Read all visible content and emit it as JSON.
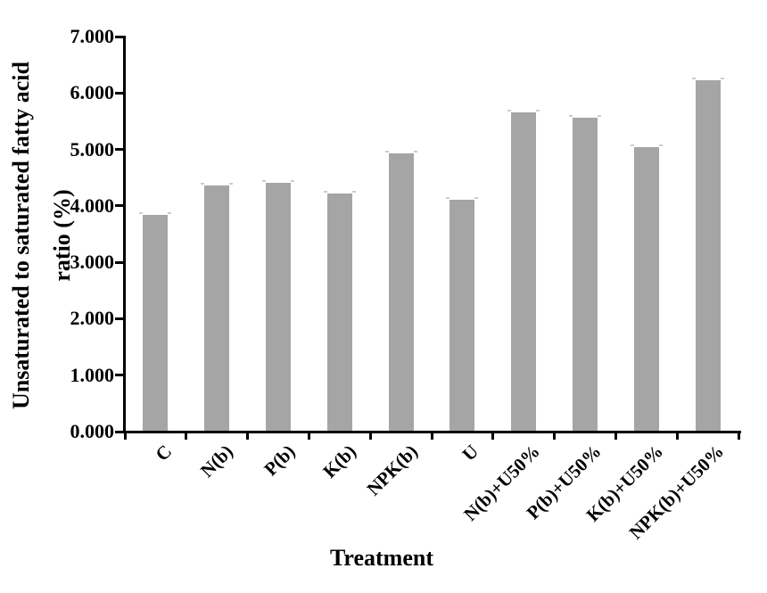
{
  "chart_data": {
    "type": "bar",
    "title": "",
    "categories": [
      "C",
      "N(b)",
      "P(b)",
      "K(b)",
      "NPK(b)",
      "U",
      "N(b)+U50%",
      "P(b)+U50%",
      "K(b)+U50%",
      "NPK(b)+U50%"
    ],
    "values": [
      3.83,
      4.35,
      4.39,
      4.2,
      4.91,
      4.09,
      5.64,
      5.54,
      5.03,
      6.21
    ],
    "xlabel": "Treatment",
    "ylabel": "Unsaturated to saturated fatty acid ratio (%)",
    "ylabel_line1": "Unsaturated to saturated fatty acid",
    "ylabel_line2": "ratio (%)",
    "ylim": [
      0,
      7
    ],
    "ytick_interval": 1,
    "ytick_labels": [
      "0.000",
      "1.000",
      "2.000",
      "3.000",
      "4.000",
      "5.000",
      "6.000",
      "7.000"
    ],
    "grid": false,
    "legend": false,
    "bar_color": "#a5a5a5",
    "axis_color": "#000000",
    "x_tick_style": "boundary",
    "x_label_rotation_deg": -45
  }
}
